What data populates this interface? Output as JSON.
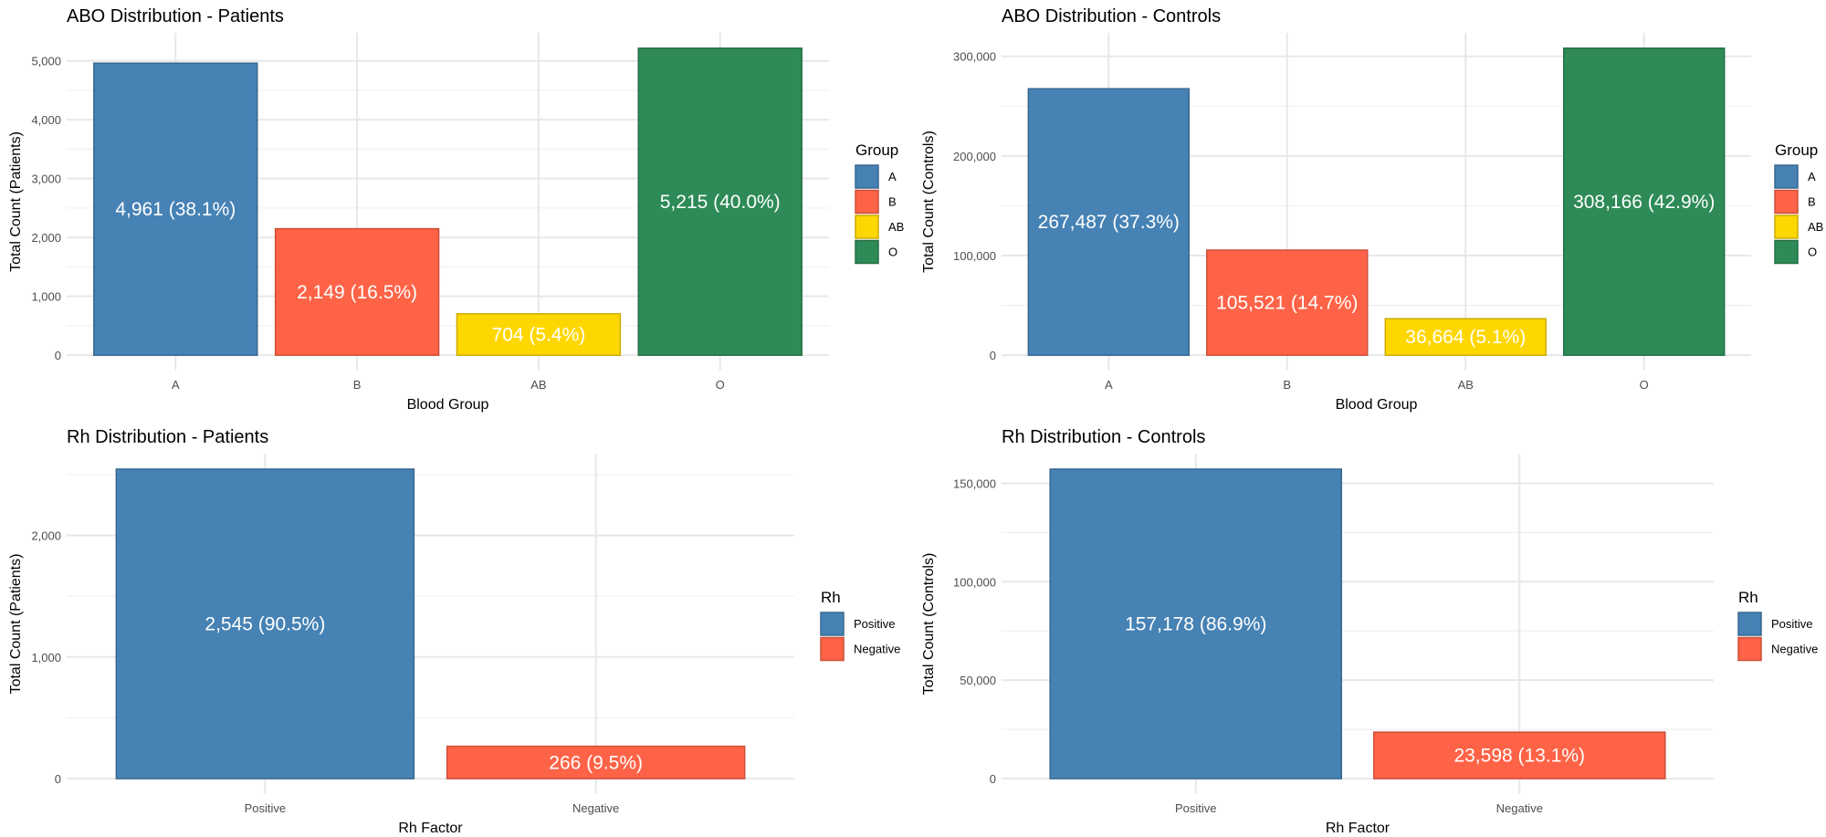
{
  "chart_data": [
    {
      "type": "bar",
      "title": "ABO Distribution - Patients",
      "xlabel": "Blood Group",
      "ylabel": "Total Count (Patients)",
      "categories": [
        "A",
        "B",
        "AB",
        "O"
      ],
      "values": [
        4961,
        2149,
        704,
        5215
      ],
      "bar_labels": [
        "4,961 (38.1%)",
        "2,149 (16.5%)",
        "704 (5.4%)",
        "5,215 (40.0%)"
      ],
      "yticks": [
        0,
        1000,
        2000,
        3000,
        4000,
        5000
      ],
      "ytick_labels": [
        "0",
        "1,000",
        "2,000",
        "3,000",
        "4,000",
        "5,000"
      ],
      "ylim": [
        0,
        5215
      ],
      "grid": true,
      "legend": {
        "title": "Group",
        "position": "right",
        "entries": [
          "A",
          "B",
          "AB",
          "O"
        ]
      },
      "colors": [
        "#4682B4",
        "#FF6347",
        "#FFD700",
        "#2E8B57"
      ]
    },
    {
      "type": "bar",
      "title": "ABO Distribution - Controls",
      "xlabel": "Blood Group",
      "ylabel": "Total Count (Controls)",
      "categories": [
        "A",
        "B",
        "AB",
        "O"
      ],
      "values": [
        267487,
        105521,
        36664,
        308166
      ],
      "bar_labels": [
        "267,487 (37.3%)",
        "105,521 (14.7%)",
        "36,664 (5.1%)",
        "308,166 (42.9%)"
      ],
      "yticks": [
        0,
        100000,
        200000,
        300000
      ],
      "ytick_labels": [
        "0",
        "100,000",
        "200,000",
        "300,000"
      ],
      "ylim": [
        0,
        308166
      ],
      "grid": true,
      "legend": {
        "title": "Group",
        "position": "right",
        "entries": [
          "A",
          "B",
          "AB",
          "O"
        ]
      },
      "colors": [
        "#4682B4",
        "#FF6347",
        "#FFD700",
        "#2E8B57"
      ]
    },
    {
      "type": "bar",
      "title": "Rh Distribution - Patients",
      "xlabel": "Rh Factor",
      "ylabel": "Total Count (Patients)",
      "categories": [
        "Positive",
        "Negative"
      ],
      "values": [
        2545,
        266
      ],
      "bar_labels": [
        "2,545 (90.5%)",
        "266 (9.5%)"
      ],
      "yticks": [
        0,
        1000,
        2000
      ],
      "ytick_labels": [
        "0",
        "1,000",
        "2,000"
      ],
      "ylim": [
        0,
        2545
      ],
      "grid": true,
      "legend": {
        "title": "Rh",
        "position": "right",
        "entries": [
          "Positive",
          "Negative"
        ]
      },
      "colors": [
        "#4682B4",
        "#FF6347"
      ]
    },
    {
      "type": "bar",
      "title": "Rh Distribution - Controls",
      "xlabel": "Rh Factor",
      "ylabel": "Total Count (Controls)",
      "categories": [
        "Positive",
        "Negative"
      ],
      "values": [
        157178,
        23598
      ],
      "bar_labels": [
        "157,178 (86.9%)",
        "23,598 (13.1%)"
      ],
      "yticks": [
        0,
        50000,
        100000,
        150000
      ],
      "ytick_labels": [
        "0",
        "50,000",
        "100,000",
        "150,000"
      ],
      "ylim": [
        0,
        157178
      ],
      "grid": true,
      "legend": {
        "title": "Rh",
        "position": "right",
        "entries": [
          "Positive",
          "Negative"
        ]
      },
      "colors": [
        "#4682B4",
        "#FF6347"
      ]
    }
  ]
}
